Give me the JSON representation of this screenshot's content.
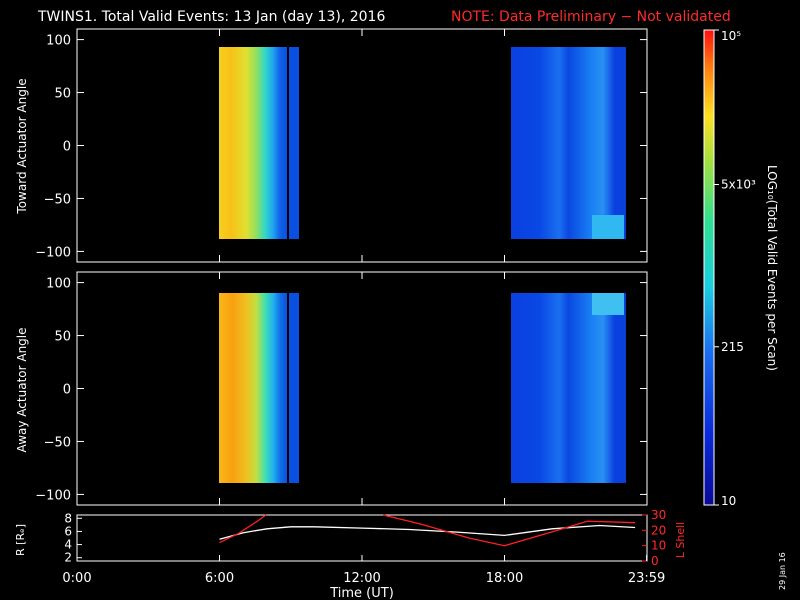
{
  "title": {
    "main": "TWINS1. Total Valid Events: 13 Jan (day  13), 2016",
    "note": "NOTE: Data Preliminary − Not validated"
  },
  "stamp": "29 Jan 16",
  "colors": {
    "background": "#000000",
    "axes": "#ffffff",
    "note": "#ff2a2a",
    "lshell": "#ff2020",
    "radius": "#ffffff"
  },
  "chart_data": [
    {
      "type": "heatmap",
      "panel": "top",
      "ylabel": "Toward Actuator Angle",
      "xlim": [
        0,
        24
      ],
      "ylim": [
        -110,
        110
      ],
      "yticks": [
        -100,
        -50,
        0,
        50,
        100
      ],
      "ytick_labels": [
        "−100",
        "−50",
        "0",
        "50",
        "100"
      ],
      "time_ranges": [
        [
          6.0,
          9.3
        ],
        [
          18.0,
          23.5
        ]
      ],
      "angle_range": [
        -90,
        90
      ],
      "colorscale": "log10 events per scan"
    },
    {
      "type": "heatmap",
      "panel": "bottom",
      "ylabel": "Away Actuator Angle",
      "xlim": [
        0,
        24
      ],
      "ylim": [
        -110,
        110
      ],
      "yticks": [
        -100,
        -50,
        0,
        50,
        100
      ],
      "ytick_labels": [
        "−100",
        "−50",
        "0",
        "50",
        "100"
      ],
      "time_ranges": [
        [
          6.0,
          9.3
        ],
        [
          18.0,
          23.5
        ]
      ],
      "angle_range": [
        -90,
        90
      ],
      "colorscale": "log10 events per scan"
    },
    {
      "type": "line",
      "panel": "orbit",
      "ylabel_left": "R [Rₑ]",
      "ylabel_right": "L Shell",
      "xlabel": "Time (UT)",
      "xlim": [
        0,
        24
      ],
      "xticks": [
        0,
        6,
        12,
        18,
        23.983
      ],
      "xtick_labels": [
        "0:00",
        "6:00",
        "12:00",
        "18:00",
        "23:59"
      ],
      "left_ylim": [
        1.5,
        8.5
      ],
      "left_yticks": [
        2,
        4,
        6,
        8
      ],
      "left_ytick_labels": [
        "2",
        "4",
        "6",
        "8"
      ],
      "right_ylim": [
        0,
        30
      ],
      "right_yticks": [
        0,
        10,
        20,
        30
      ],
      "right_ytick_labels": [
        "0",
        "10",
        "20",
        "30"
      ],
      "series": [
        {
          "axis": "left",
          "x": [
            6.0,
            7.0,
            8.0,
            9.0,
            10.0,
            12.0,
            14.0,
            16.0,
            18.0,
            20.0,
            22.0,
            23.5
          ],
          "y": [
            4.8,
            5.8,
            6.4,
            6.7,
            6.7,
            6.5,
            6.3,
            5.9,
            5.4,
            6.4,
            6.9,
            6.6
          ]
        },
        {
          "axis": "right",
          "x": [
            6.0,
            6.8,
            7.6,
            7.95
          ],
          "y": [
            12.0,
            18.0,
            26.0,
            30.0
          ]
        },
        {
          "axis": "right",
          "x": [
            12.9,
            14.5,
            16.5,
            18.0,
            20.0,
            21.5,
            23.5
          ],
          "y": [
            30.0,
            24.0,
            15.0,
            10.0,
            19.0,
            26.0,
            25.0
          ]
        }
      ]
    }
  ],
  "colorbar": {
    "label": "LOG₁₀(Total Valid Events per Scan)",
    "scale": "log",
    "range": [
      10,
      100000
    ],
    "ticks": [
      10,
      215,
      5000,
      100000
    ],
    "tick_labels": [
      "10",
      "215",
      "5x10³",
      "10⁵"
    ]
  }
}
